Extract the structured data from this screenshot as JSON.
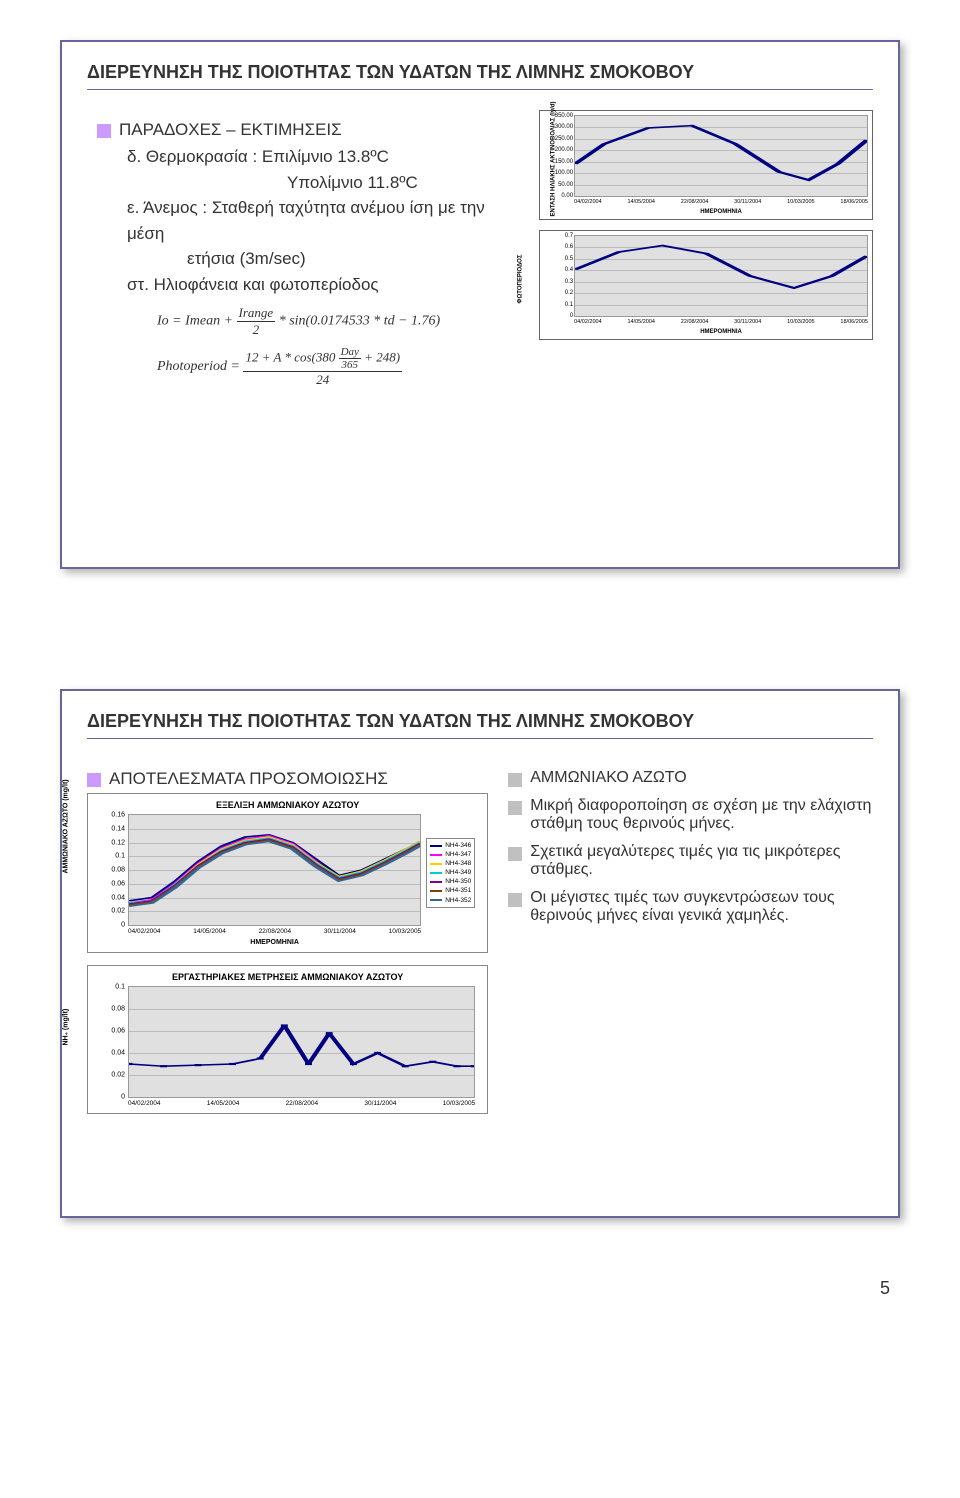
{
  "slide1": {
    "title": "ΔΙΕΡΕΥΝΗΣΗ ΤΗΣ ΠΟΙΟΤΗΤΑΣ ΤΩΝ ΥΔΑΤΩΝ ΤΗΣ ΛΙΜΝΗΣ ΣΜΟΚΟΒΟΥ",
    "heading": "ΠΑΡΑΔΟΧΕΣ – ΕΚΤΙΜΗΣΕΙΣ",
    "line_d": "δ. Θερμοκρασία : Επιλίμνιο 13.8ºC",
    "line_d2": "Υπολίμνιο 11.8ºC",
    "line_e": "ε. Άνεμος : Σταθερή ταχύτητα ανέμου ίση με την μέση",
    "line_e2": "ετήσια (3m/sec)",
    "line_st": "στ. Ηλιοφάνεια και φωτοπερίοδος",
    "formula1_lhs": "Io = Imean +",
    "formula1_frac_top": "Irange",
    "formula1_frac_bot": "2",
    "formula1_rhs": "* sin(0.0174533 * td − 1.76)",
    "formula2_lhs": "Photoperiod =",
    "formula2_num_a": "12 + A * cos(380",
    "formula2_num_frac_top": "Day",
    "formula2_num_frac_bot": "365",
    "formula2_num_b": "+ 248)",
    "formula2_den": "24",
    "chart_solar": {
      "y_title": "ΕΝΤΑΣΗ ΗΛΙΑΚΗΣ ΑΚΤΙΝΟΒΟΛΙΑΣ (ly/d)",
      "x_title": "ΗΜΕΡΟΜΗΝΙΑ",
      "yticks": [
        "350.00",
        "300.00",
        "250.00",
        "200.00",
        "150.00",
        "100.00",
        "50.00",
        "0.00"
      ],
      "xticks": [
        "04/02/2004",
        "14/05/2004",
        "22/08/2004",
        "30/11/2004",
        "10/03/2005",
        "18/06/2005"
      ],
      "ylim": [
        0,
        350
      ],
      "line_color": "#000080",
      "line_width": 2,
      "grid_color": "#bbbbbb",
      "bg_color": "#e0e0e0",
      "path_points": [
        [
          0,
          60
        ],
        [
          10,
          35
        ],
        [
          25,
          15
        ],
        [
          40,
          12
        ],
        [
          55,
          35
        ],
        [
          70,
          70
        ],
        [
          80,
          80
        ],
        [
          90,
          60
        ],
        [
          100,
          30
        ]
      ]
    },
    "chart_photo": {
      "y_title": "ΦΩΤΟΠΕΡΙΟΔΟΣ",
      "x_title": "ΗΜΕΡΟΜΗΝΙΑ",
      "yticks": [
        "0.7",
        "0.6",
        "0.5",
        "0.4",
        "0.3",
        "0.2",
        "0.1",
        "0"
      ],
      "xticks": [
        "04/02/2004",
        "14/05/2004",
        "22/08/2004",
        "30/11/2004",
        "10/03/2005",
        "18/06/2005"
      ],
      "ylim": [
        0,
        0.7
      ],
      "line_color": "#000080",
      "line_width": 2,
      "grid_color": "#bbbbbb",
      "bg_color": "#e0e0e0",
      "path_points": [
        [
          0,
          42
        ],
        [
          15,
          20
        ],
        [
          30,
          12
        ],
        [
          45,
          22
        ],
        [
          60,
          50
        ],
        [
          75,
          65
        ],
        [
          88,
          50
        ],
        [
          100,
          25
        ]
      ]
    }
  },
  "slide2": {
    "title": "ΔΙΕΡΕΥΝΗΣΗ ΤΗΣ ΠΟΙΟΤΗΤΑΣ ΤΩΝ ΥΔΑΤΩΝ ΤΗΣ ΛΙΜΝΗΣ ΣΜΟΚΟΒΟΥ",
    "left_heading": "ΑΠΟΤΕΛΕΣΜΑΤΑ ΠΡΟΣΟΜΟΙΩΣΗΣ",
    "right_heading": "ΑΜΜΩΝΙΑΚΟ ΑΖΩΤΟ",
    "chart_evo": {
      "title": "ΕΞΕΛΙΞΗ ΑΜΜΩΝΙΑΚΟΥ ΑΖΩΤΟΥ",
      "y_title": "ΑΜΜΩΝΙΑΚΟ ΑΖΩΤΟ (mg/lt)",
      "x_title": "ΗΜΕΡΟΜΗΝΙΑ",
      "yticks": [
        "0.16",
        "0.14",
        "0.12",
        "0.1",
        "0.08",
        "0.06",
        "0.04",
        "0.02",
        "0"
      ],
      "xticks": [
        "04/02/2004",
        "14/05/2004",
        "22/08/2004",
        "30/11/2004",
        "10/03/2005"
      ],
      "ylim": [
        0,
        0.16
      ],
      "grid_color": "#bbbbbb",
      "bg_color": "#e0e0e0",
      "legend": [
        {
          "label": "NH4-346",
          "color": "#000080"
        },
        {
          "label": "NH4-347",
          "color": "#ff00ff"
        },
        {
          "label": "NH4-348",
          "color": "#ffcc00"
        },
        {
          "label": "NH4-349",
          "color": "#00cccc"
        },
        {
          "label": "NH4-350",
          "color": "#800080"
        },
        {
          "label": "NH4-351",
          "color": "#804000"
        },
        {
          "label": "NH4-352",
          "color": "#336699"
        }
      ],
      "series_shared_x": [
        0,
        8,
        16,
        24,
        32,
        40,
        48,
        56,
        64,
        72,
        80,
        88,
        96,
        100
      ],
      "series": [
        {
          "name": "NH4-346",
          "color": "#000080",
          "y": [
            78,
            75,
            60,
            42,
            28,
            20,
            18,
            25,
            40,
            55,
            50,
            40,
            30,
            24
          ]
        },
        {
          "name": "NH4-347",
          "color": "#ff00ff",
          "y": [
            80,
            77,
            62,
            44,
            30,
            22,
            19,
            26,
            42,
            58,
            52,
            42,
            31,
            25
          ]
        },
        {
          "name": "NH4-348",
          "color": "#ffcc00",
          "y": [
            82,
            79,
            63,
            45,
            31,
            23,
            20,
            27,
            43,
            56,
            51,
            41,
            30,
            24
          ]
        },
        {
          "name": "NH4-349",
          "color": "#00cccc",
          "y": [
            80,
            78,
            63,
            46,
            32,
            24,
            21,
            28,
            44,
            57,
            52,
            42,
            31,
            25
          ]
        },
        {
          "name": "NH4-350",
          "color": "#800080",
          "y": [
            81,
            78,
            64,
            46,
            33,
            25,
            22,
            29,
            45,
            58,
            53,
            43,
            32,
            26
          ]
        },
        {
          "name": "NH4-351",
          "color": "#804000",
          "y": [
            82,
            79,
            65,
            47,
            34,
            26,
            23,
            30,
            46,
            59,
            54,
            44,
            33,
            27
          ]
        },
        {
          "name": "NH4-352",
          "color": "#336699",
          "y": [
            83,
            80,
            66,
            48,
            35,
            27,
            24,
            31,
            47,
            60,
            55,
            45,
            34,
            28
          ]
        }
      ]
    },
    "chart_lab": {
      "title": "ΕΡΓΑΣΤΗΡΙΑΚΕΣ ΜΕΤΡΗΣΕΙΣ ΑΜΜΩΝΙΑΚΟΥ ΑΖΩΤΟΥ",
      "y_title": "NH₄ (mg/lt)",
      "x_title": "",
      "yticks": [
        "0.1",
        "0.08",
        "0.06",
        "0.04",
        "0.02",
        "0"
      ],
      "xticks": [
        "04/02/2004",
        "14/05/2004",
        "22/08/2004",
        "30/11/2004",
        "10/03/2005"
      ],
      "ylim": [
        0,
        0.1
      ],
      "color": "#000080",
      "grid_color": "#bbbbbb",
      "bg_color": "#e0e0e0",
      "points_x": [
        0,
        10,
        20,
        30,
        38,
        45,
        52,
        58,
        65,
        72,
        80,
        88,
        95,
        100
      ],
      "points_y": [
        70,
        72,
        71,
        70,
        65,
        35,
        70,
        42,
        70,
        60,
        72,
        68,
        72,
        72
      ]
    },
    "bullets": [
      "Μικρή διαφοροποίηση σε σχέση με την ελάχιστη στάθμη τους θερινούς μήνες.",
      "Σχετικά μεγαλύτερες τιμές για τις μικρότερες στάθμες.",
      "Οι μέγιστες τιμές των συγκεντρώσεων τους θερινούς μήνες είναι γενικά χαμηλές."
    ]
  },
  "page_number": "5"
}
